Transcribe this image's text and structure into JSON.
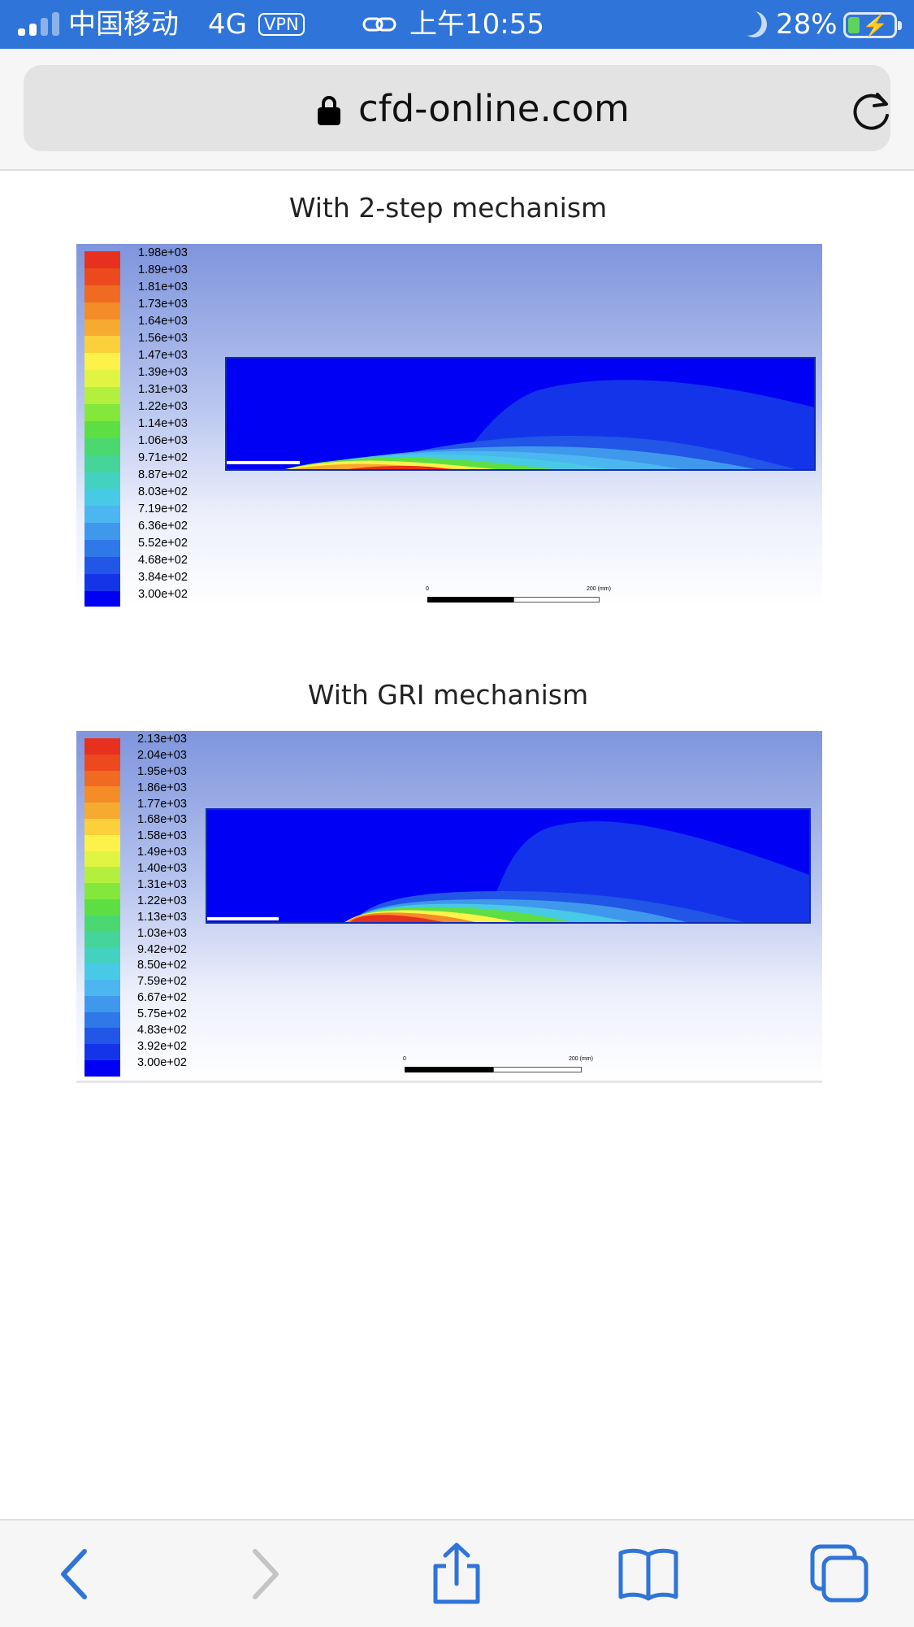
{
  "status_bar": {
    "carrier": "中国移动",
    "network": "4G",
    "vpn": "VPN",
    "time": "上午10:55",
    "battery": "28%",
    "battery_level": 0.28,
    "signal_bars_filled": 2
  },
  "address_bar": {
    "domain": "cfd-online.com",
    "icons": [
      "lock-icon",
      "reload-icon"
    ]
  },
  "figures": [
    {
      "title": "With 2-step mechanism",
      "legend_labels": [
        "1.98e+03",
        "1.89e+03",
        "1.81e+03",
        "1.73e+03",
        "1.64e+03",
        "1.56e+03",
        "1.47e+03",
        "1.39e+03",
        "1.31e+03",
        "1.22e+03",
        "1.14e+03",
        "1.06e+03",
        "9.71e+02",
        "8.87e+02",
        "8.03e+02",
        "7.19e+02",
        "6.36e+02",
        "5.52e+02",
        "4.68e+02",
        "3.84e+02",
        "3.00e+02"
      ],
      "scale_start": "0",
      "scale_end": "200 (mm)"
    },
    {
      "title": "With GRI mechanism",
      "legend_labels": [
        "2.13e+03",
        "2.04e+03",
        "1.95e+03",
        "1.86e+03",
        "1.77e+03",
        "1.68e+03",
        "1.58e+03",
        "1.49e+03",
        "1.40e+03",
        "1.31e+03",
        "1.22e+03",
        "1.13e+03",
        "1.03e+03",
        "9.42e+02",
        "8.50e+02",
        "7.59e+02",
        "6.67e+02",
        "5.75e+02",
        "4.83e+02",
        "3.92e+02",
        "3.00e+02"
      ],
      "scale_start": "0",
      "scale_end": "200 (mm)"
    }
  ],
  "colormap": [
    "#e8301e",
    "#ec4a1e",
    "#f06a22",
    "#f48c28",
    "#f7aa30",
    "#fbd03a",
    "#fdf24a",
    "#e0f542",
    "#b4ef3e",
    "#84e83c",
    "#5ddf44",
    "#4bd870",
    "#45d49a",
    "#44d2c0",
    "#48c9e6",
    "#4cb6f0",
    "#3f98ec",
    "#2f78e8",
    "#2156e6",
    "#1434ea",
    "#0000f5"
  ],
  "toolbar": {
    "icons": [
      "back-icon",
      "forward-icon",
      "share-icon",
      "bookmarks-icon",
      "tabs-icon"
    ],
    "forward_enabled": false
  }
}
